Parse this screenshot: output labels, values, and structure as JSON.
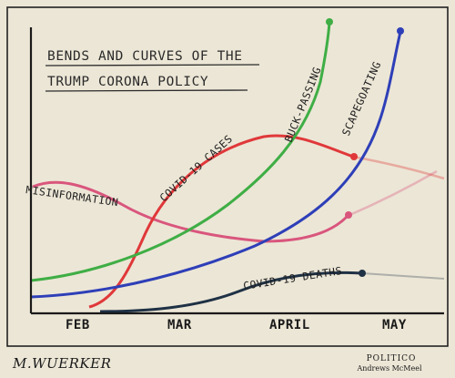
{
  "title": {
    "line1": "BENDS AND CURVES OF THE",
    "line2": "TRUMP CORONA POLICY"
  },
  "months": [
    "FEB",
    "MAR",
    "APRIL",
    "MAY"
  ],
  "curves": {
    "buck_passing": {
      "label": "BUCK-PASSING",
      "color": "#3fae45"
    },
    "scapegoating": {
      "label": "SCAPEGOATING",
      "color": "#2e3fb8"
    },
    "covid_cases": {
      "label": "COVID-19 CASES",
      "color": "#e0383a"
    },
    "misinformation": {
      "label": "MISINFORMATION",
      "color": "#d9567d"
    },
    "covid_deaths": {
      "label": "COVID-19 DEATHS",
      "color": "#1f3145"
    }
  },
  "credits": {
    "signature": "M.WUERKER",
    "publisher": "POLITICO",
    "syndicate": "Andrews McMeel"
  },
  "colors": {
    "paper": "#ece6d6",
    "axis": "#1a1a1a",
    "border": "#222222"
  }
}
